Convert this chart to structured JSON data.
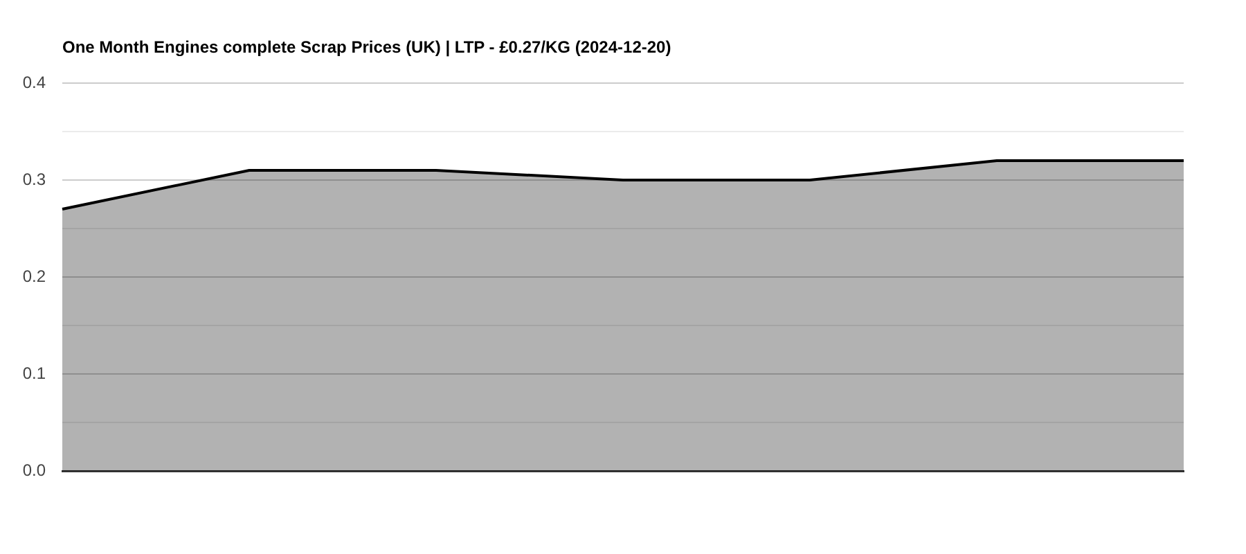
{
  "chart_data": {
    "type": "area",
    "title": "One Month Engines complete Scrap Prices (UK) | LTP - £0.27/KG (2024-12-20)",
    "categories": [
      null,
      null,
      null,
      null,
      null,
      null,
      null
    ],
    "values": [
      0.27,
      0.31,
      0.31,
      0.3,
      0.3,
      0.32,
      0.32
    ],
    "color": "#000000",
    "ylim": [
      0,
      0.4
    ],
    "yticks": [
      {
        "value": 0,
        "label": "0.0"
      },
      {
        "value": 0.05,
        "label": null
      },
      0.1,
      {
        "value": 0.15,
        "label": null
      },
      0.2,
      {
        "value": 0.25,
        "label": null
      },
      0.3,
      {
        "value": 0.35,
        "label": null
      },
      0.4
    ],
    "grid": "y",
    "tick_labels": "y",
    "marker": "none",
    "line_style": "solid"
  }
}
